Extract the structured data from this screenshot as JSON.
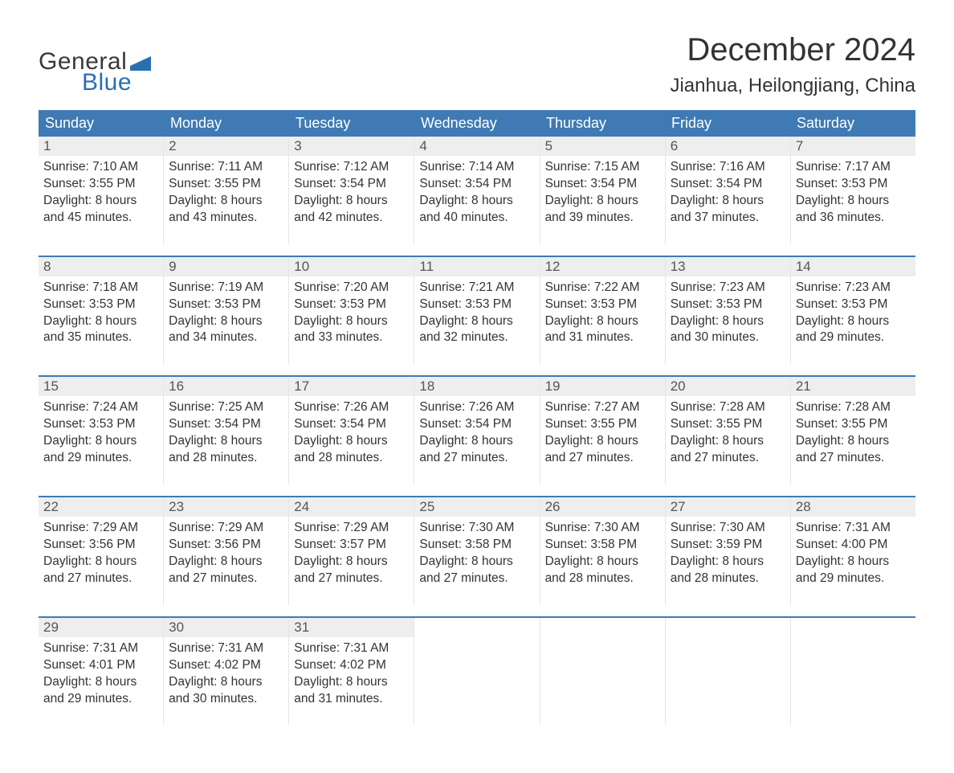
{
  "logo": {
    "word_general": "General",
    "word_blue": "Blue",
    "flag_color": "#2a6fb0",
    "text_color_general": "#3a3a3a",
    "text_color_blue": "#2a6fb0"
  },
  "title": {
    "month": "December 2024",
    "location": "Jianhua, Heilongjiang, China",
    "month_fontsize": 40,
    "location_fontsize": 24,
    "text_color": "#333333"
  },
  "colors": {
    "header_bg": "#3f7ab4",
    "header_text": "#ffffff",
    "week_divider": "#3f7ab4",
    "daynum_bg": "#eeeeee",
    "daynum_text": "#555555",
    "body_text": "#333333",
    "cell_border": "#e6e6e6",
    "page_bg": "#ffffff"
  },
  "days_of_week": [
    "Sunday",
    "Monday",
    "Tuesday",
    "Wednesday",
    "Thursday",
    "Friday",
    "Saturday"
  ],
  "weeks": [
    [
      {
        "n": "1",
        "sunrise": "Sunrise: 7:10 AM",
        "sunset": "Sunset: 3:55 PM",
        "d1": "Daylight: 8 hours",
        "d2": "and 45 minutes."
      },
      {
        "n": "2",
        "sunrise": "Sunrise: 7:11 AM",
        "sunset": "Sunset: 3:55 PM",
        "d1": "Daylight: 8 hours",
        "d2": "and 43 minutes."
      },
      {
        "n": "3",
        "sunrise": "Sunrise: 7:12 AM",
        "sunset": "Sunset: 3:54 PM",
        "d1": "Daylight: 8 hours",
        "d2": "and 42 minutes."
      },
      {
        "n": "4",
        "sunrise": "Sunrise: 7:14 AM",
        "sunset": "Sunset: 3:54 PM",
        "d1": "Daylight: 8 hours",
        "d2": "and 40 minutes."
      },
      {
        "n": "5",
        "sunrise": "Sunrise: 7:15 AM",
        "sunset": "Sunset: 3:54 PM",
        "d1": "Daylight: 8 hours",
        "d2": "and 39 minutes."
      },
      {
        "n": "6",
        "sunrise": "Sunrise: 7:16 AM",
        "sunset": "Sunset: 3:54 PM",
        "d1": "Daylight: 8 hours",
        "d2": "and 37 minutes."
      },
      {
        "n": "7",
        "sunrise": "Sunrise: 7:17 AM",
        "sunset": "Sunset: 3:53 PM",
        "d1": "Daylight: 8 hours",
        "d2": "and 36 minutes."
      }
    ],
    [
      {
        "n": "8",
        "sunrise": "Sunrise: 7:18 AM",
        "sunset": "Sunset: 3:53 PM",
        "d1": "Daylight: 8 hours",
        "d2": "and 35 minutes."
      },
      {
        "n": "9",
        "sunrise": "Sunrise: 7:19 AM",
        "sunset": "Sunset: 3:53 PM",
        "d1": "Daylight: 8 hours",
        "d2": "and 34 minutes."
      },
      {
        "n": "10",
        "sunrise": "Sunrise: 7:20 AM",
        "sunset": "Sunset: 3:53 PM",
        "d1": "Daylight: 8 hours",
        "d2": "and 33 minutes."
      },
      {
        "n": "11",
        "sunrise": "Sunrise: 7:21 AM",
        "sunset": "Sunset: 3:53 PM",
        "d1": "Daylight: 8 hours",
        "d2": "and 32 minutes."
      },
      {
        "n": "12",
        "sunrise": "Sunrise: 7:22 AM",
        "sunset": "Sunset: 3:53 PM",
        "d1": "Daylight: 8 hours",
        "d2": "and 31 minutes."
      },
      {
        "n": "13",
        "sunrise": "Sunrise: 7:23 AM",
        "sunset": "Sunset: 3:53 PM",
        "d1": "Daylight: 8 hours",
        "d2": "and 30 minutes."
      },
      {
        "n": "14",
        "sunrise": "Sunrise: 7:23 AM",
        "sunset": "Sunset: 3:53 PM",
        "d1": "Daylight: 8 hours",
        "d2": "and 29 minutes."
      }
    ],
    [
      {
        "n": "15",
        "sunrise": "Sunrise: 7:24 AM",
        "sunset": "Sunset: 3:53 PM",
        "d1": "Daylight: 8 hours",
        "d2": "and 29 minutes."
      },
      {
        "n": "16",
        "sunrise": "Sunrise: 7:25 AM",
        "sunset": "Sunset: 3:54 PM",
        "d1": "Daylight: 8 hours",
        "d2": "and 28 minutes."
      },
      {
        "n": "17",
        "sunrise": "Sunrise: 7:26 AM",
        "sunset": "Sunset: 3:54 PM",
        "d1": "Daylight: 8 hours",
        "d2": "and 28 minutes."
      },
      {
        "n": "18",
        "sunrise": "Sunrise: 7:26 AM",
        "sunset": "Sunset: 3:54 PM",
        "d1": "Daylight: 8 hours",
        "d2": "and 27 minutes."
      },
      {
        "n": "19",
        "sunrise": "Sunrise: 7:27 AM",
        "sunset": "Sunset: 3:55 PM",
        "d1": "Daylight: 8 hours",
        "d2": "and 27 minutes."
      },
      {
        "n": "20",
        "sunrise": "Sunrise: 7:28 AM",
        "sunset": "Sunset: 3:55 PM",
        "d1": "Daylight: 8 hours",
        "d2": "and 27 minutes."
      },
      {
        "n": "21",
        "sunrise": "Sunrise: 7:28 AM",
        "sunset": "Sunset: 3:55 PM",
        "d1": "Daylight: 8 hours",
        "d2": "and 27 minutes."
      }
    ],
    [
      {
        "n": "22",
        "sunrise": "Sunrise: 7:29 AM",
        "sunset": "Sunset: 3:56 PM",
        "d1": "Daylight: 8 hours",
        "d2": "and 27 minutes."
      },
      {
        "n": "23",
        "sunrise": "Sunrise: 7:29 AM",
        "sunset": "Sunset: 3:56 PM",
        "d1": "Daylight: 8 hours",
        "d2": "and 27 minutes."
      },
      {
        "n": "24",
        "sunrise": "Sunrise: 7:29 AM",
        "sunset": "Sunset: 3:57 PM",
        "d1": "Daylight: 8 hours",
        "d2": "and 27 minutes."
      },
      {
        "n": "25",
        "sunrise": "Sunrise: 7:30 AM",
        "sunset": "Sunset: 3:58 PM",
        "d1": "Daylight: 8 hours",
        "d2": "and 27 minutes."
      },
      {
        "n": "26",
        "sunrise": "Sunrise: 7:30 AM",
        "sunset": "Sunset: 3:58 PM",
        "d1": "Daylight: 8 hours",
        "d2": "and 28 minutes."
      },
      {
        "n": "27",
        "sunrise": "Sunrise: 7:30 AM",
        "sunset": "Sunset: 3:59 PM",
        "d1": "Daylight: 8 hours",
        "d2": "and 28 minutes."
      },
      {
        "n": "28",
        "sunrise": "Sunrise: 7:31 AM",
        "sunset": "Sunset: 4:00 PM",
        "d1": "Daylight: 8 hours",
        "d2": "and 29 minutes."
      }
    ],
    [
      {
        "n": "29",
        "sunrise": "Sunrise: 7:31 AM",
        "sunset": "Sunset: 4:01 PM",
        "d1": "Daylight: 8 hours",
        "d2": "and 29 minutes."
      },
      {
        "n": "30",
        "sunrise": "Sunrise: 7:31 AM",
        "sunset": "Sunset: 4:02 PM",
        "d1": "Daylight: 8 hours",
        "d2": "and 30 minutes."
      },
      {
        "n": "31",
        "sunrise": "Sunrise: 7:31 AM",
        "sunset": "Sunset: 4:02 PM",
        "d1": "Daylight: 8 hours",
        "d2": "and 31 minutes."
      },
      {
        "empty": true
      },
      {
        "empty": true
      },
      {
        "empty": true
      },
      {
        "empty": true
      }
    ]
  ]
}
